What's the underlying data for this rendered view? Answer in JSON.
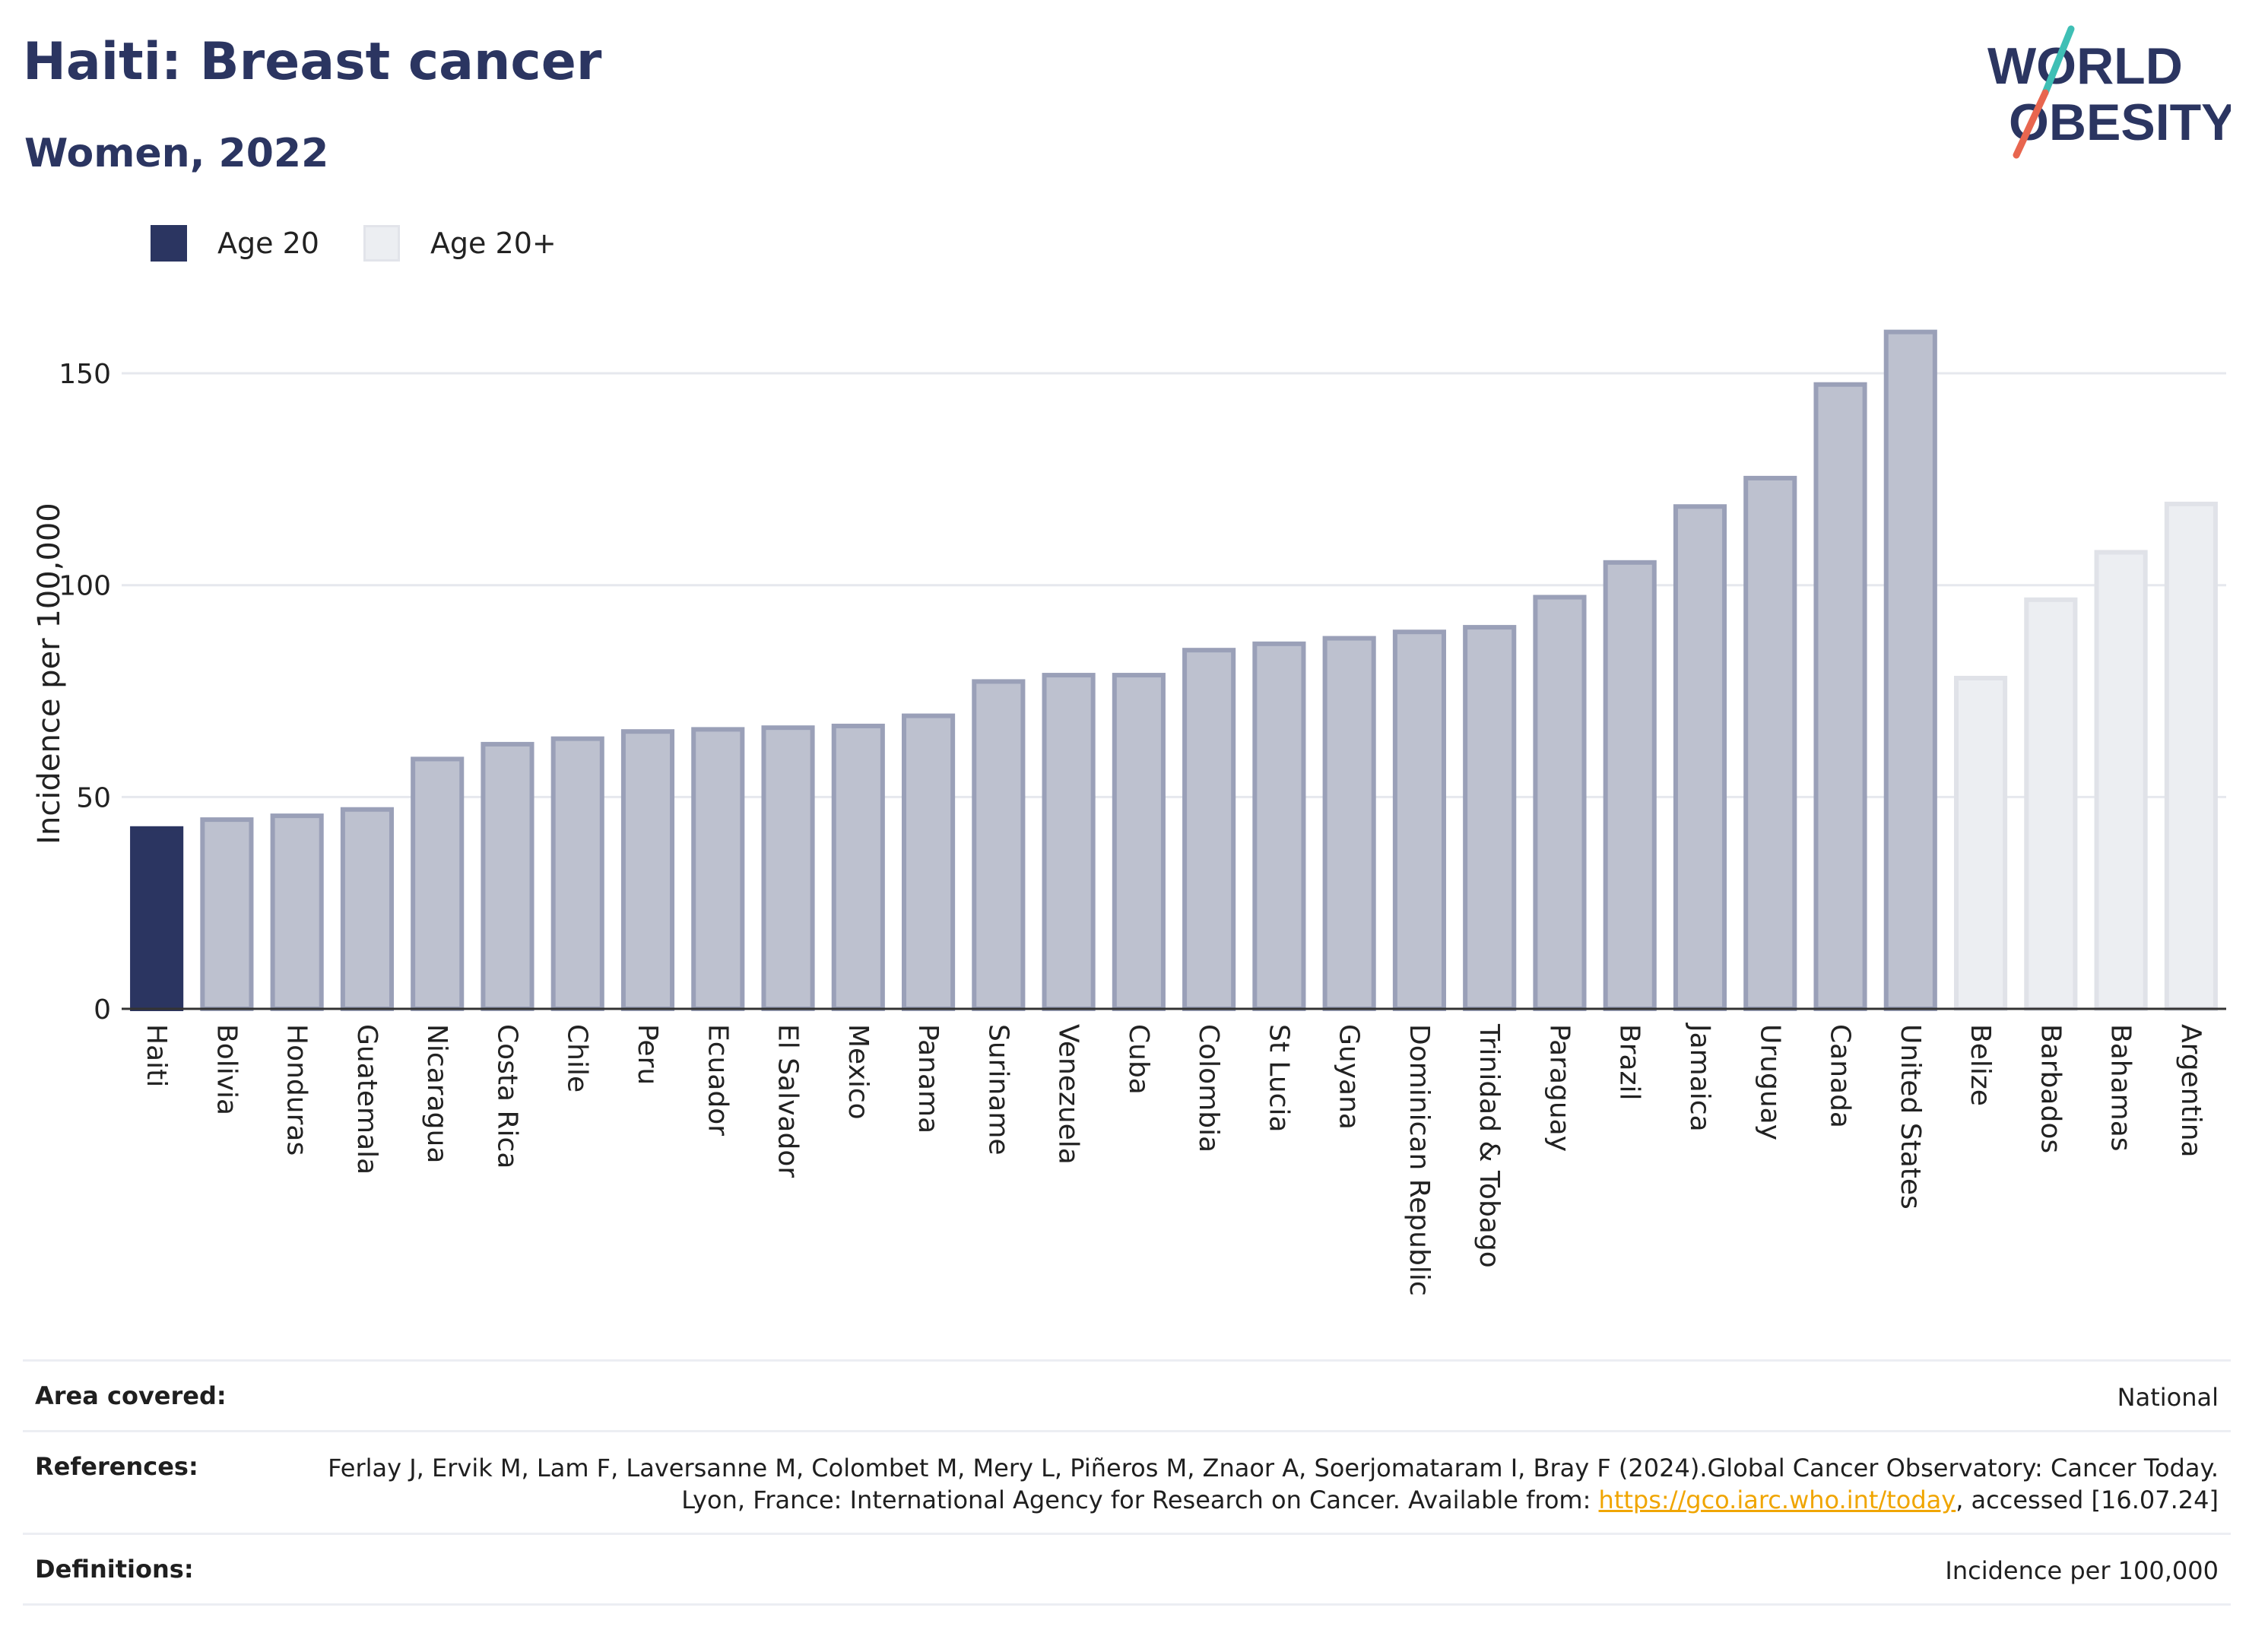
{
  "header": {
    "title": "Haiti: Breast cancer",
    "subtitle": "Women, 2022",
    "logo_line1": "WORLD",
    "logo_line2": "OBESITY"
  },
  "legend": [
    {
      "label": "Age 20",
      "color": "#2b3561"
    },
    {
      "label": "Age 20+",
      "color": "#eceef2"
    }
  ],
  "colors": {
    "highlight": "#2b3561",
    "group_bar": "#bdc1cf",
    "group_bar_border": "#9aa0b8",
    "other_bar": "#eceef2",
    "other_bar_border": "#e0e2e8",
    "grid": "#e6e8ee"
  },
  "chart_data": {
    "type": "bar",
    "title": "Haiti: Breast cancer",
    "subtitle": "Women, 2022",
    "ylabel": "Incidence per 100,000",
    "xlabel": "",
    "ylim": [
      0,
      178
    ],
    "yticks": [
      0,
      50,
      100,
      150
    ],
    "grid": true,
    "legend_position": "top-left",
    "categories": [
      "Haiti",
      "Bolivia",
      "Honduras",
      "Guatemala",
      "Nicaragua",
      "Costa Rica",
      "Chile",
      "Peru",
      "Ecuador",
      "El Salvador",
      "Mexico",
      "Panama",
      "Suriname",
      "Venezuela",
      "Cuba",
      "Colombia",
      "St Lucia",
      "Guyana",
      "Dominican Republic",
      "Trinidad & Tobago",
      "Paraguay",
      "Brazil",
      "Jamaica",
      "Uruguay",
      "Canada",
      "United States",
      "Belize",
      "Barbados",
      "Bahamas",
      "Argentina"
    ],
    "values": [
      43.1,
      45.2,
      46.1,
      47.6,
      59.5,
      63.0,
      64.3,
      66.0,
      66.5,
      66.9,
      67.3,
      69.7,
      77.8,
      79.3,
      79.3,
      85.2,
      86.7,
      88.0,
      89.5,
      90.6,
      97.7,
      105.9,
      119.1,
      125.8,
      147.9,
      160.3,
      78.6,
      97.1,
      108.3,
      119.7
    ],
    "groups": [
      "Age 20",
      "Age 20",
      "Age 20",
      "Age 20",
      "Age 20",
      "Age 20",
      "Age 20",
      "Age 20",
      "Age 20",
      "Age 20",
      "Age 20",
      "Age 20",
      "Age 20",
      "Age 20",
      "Age 20",
      "Age 20",
      "Age 20",
      "Age 20",
      "Age 20",
      "Age 20",
      "Age 20",
      "Age 20",
      "Age 20",
      "Age 20",
      "Age 20",
      "Age 20",
      "Age 20+",
      "Age 20+",
      "Age 20+",
      "Age 20+"
    ],
    "highlight": "Haiti"
  },
  "footer": {
    "area_label": "Area covered:",
    "area_value": "National",
    "references_label": "References:",
    "references_text": "Ferlay J, Ervik M, Lam F, Laversanne M, Colombet M, Mery L, Piñeros M, Znaor A, Soerjomataram I, Bray F (2024).Global Cancer Observatory: Cancer Today. Lyon, France: International Agency for Research on Cancer. Available from: ",
    "references_link": "https://gco.iarc.who.int/today",
    "references_suffix": ", accessed [16.07.24]",
    "definitions_label": "Definitions:",
    "definitions_value": "Incidence per 100,000"
  }
}
